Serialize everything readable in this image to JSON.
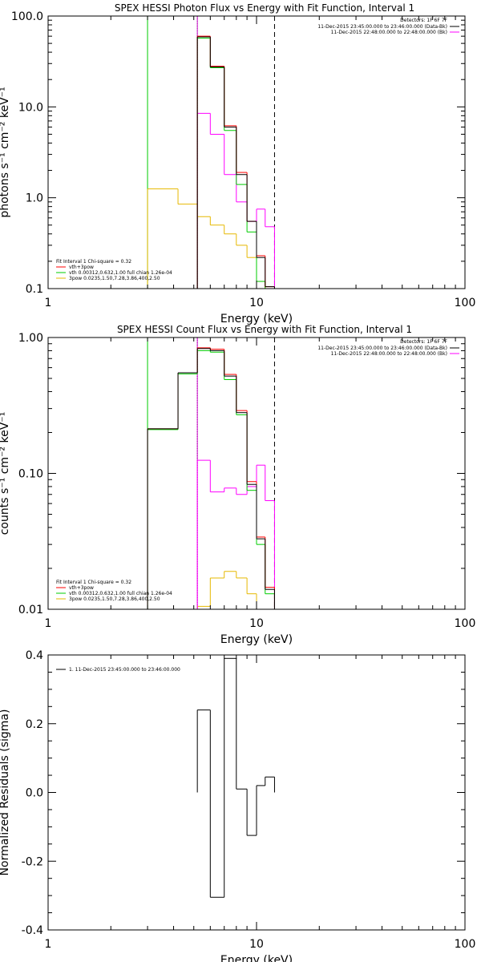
{
  "chart_data": [
    {
      "type": "line",
      "title": "SPEX HESSI Photon Flux vs Energy with Fit Function, Interval 1",
      "xlabel": "Energy (keV)",
      "ylabel": "photons s⁻¹ cm⁻² keV⁻¹",
      "xscale": "log",
      "yscale": "log",
      "xlim": [
        1,
        100
      ],
      "ylim": [
        0.1,
        100
      ],
      "x_ticks": [
        "1",
        "10",
        "100"
      ],
      "y_ticks": [
        "0.1",
        "1.0",
        "10.0",
        "100.0"
      ],
      "y_tick_values": [
        0.1,
        1,
        10,
        100
      ],
      "legend_top": {
        "header": "Detectors: 1F 6F 7F",
        "items": [
          {
            "text": "11-Dec-2015 23:45:00.000 to 23:46:00.000 (Data-Bk)",
            "color": "#000000"
          },
          {
            "text": "11-Dec-2015 22:48:00.000 to 22:48:00.000 (Bk)",
            "color": "#ff00ff"
          }
        ]
      },
      "legend_bottom": {
        "header": "Fit Interval 1   Chi-square = 0.32",
        "items": [
          {
            "text": "vth+3pow",
            "color": "#ff0000"
          },
          {
            "text": "vth 0.00312,0.632,1.00  full chian 1.26e-04",
            "color": "#00cc00"
          },
          {
            "text": "3pow 0.0235,1.50,7.28,3.86,400,2.50",
            "color": "#e6b800"
          }
        ]
      },
      "vlines": [
        {
          "x": 3.0,
          "color": "#00cc00",
          "style": "solid"
        },
        {
          "x": 5.2,
          "color": "#00aa00",
          "style": "dotted"
        },
        {
          "x": 5.2,
          "color": "#cc00cc",
          "style": "solid"
        },
        {
          "x": 12.2,
          "color": "#000000",
          "style": "dashed"
        }
      ],
      "bin_edges": [
        3.0,
        4.2,
        5.2,
        6.0,
        7.0,
        8.0,
        9.0,
        10.0,
        11.0,
        12.2
      ],
      "series": [
        {
          "color": "#e6b800",
          "values": [
            1.25,
            0.85,
            0.62,
            0.5,
            0.4,
            0.3,
            0.22,
            0.12,
            0.1
          ]
        },
        {
          "color": "#ff00ff",
          "values": [
            null,
            null,
            8.5,
            5.0,
            1.8,
            0.9,
            0.55,
            0.75,
            0.48
          ]
        },
        {
          "color": "#00cc00",
          "values": [
            null,
            null,
            57,
            27,
            5.5,
            1.4,
            0.42,
            0.12,
            0.1
          ]
        },
        {
          "color": "#ff0000",
          "values": [
            null,
            null,
            60,
            28,
            6.2,
            1.9,
            0.55,
            0.23,
            0.105
          ]
        },
        {
          "color": "#000000",
          "values": [
            null,
            null,
            59,
            27.5,
            6.0,
            1.8,
            0.55,
            0.22,
            0.105
          ]
        }
      ]
    },
    {
      "type": "line",
      "title": "SPEX HESSI Count Flux vs Energy with Fit Function, Interval 1",
      "xlabel": "Energy (keV)",
      "ylabel": "counts s⁻¹ cm⁻² keV⁻¹",
      "xscale": "log",
      "yscale": "log",
      "xlim": [
        1,
        100
      ],
      "ylim": [
        0.01,
        1.0
      ],
      "x_ticks": [
        "1",
        "10",
        "100"
      ],
      "y_ticks": [
        "0.01",
        "0.10",
        "1.00"
      ],
      "y_tick_values": [
        0.01,
        0.1,
        1
      ],
      "legend_top": {
        "header": "Detectors: 1F 6F 7F",
        "items": [
          {
            "text": "11-Dec-2015 23:45:00.000 to 23:46:00.000 (Data-Bk)",
            "color": "#000000"
          },
          {
            "text": "11-Dec-2015 22:48:00.000 to 22:48:00.000 (Bk)",
            "color": "#ff00ff"
          }
        ]
      },
      "legend_bottom": {
        "header": "Fit Interval 1   Chi-square = 0.32",
        "items": [
          {
            "text": "vth+3pow",
            "color": "#ff0000"
          },
          {
            "text": "vth 0.00312,0.632,1.00  full chian 1.26e-04",
            "color": "#00cc00"
          },
          {
            "text": "3pow 0.0235,1.50,7.28,3.86,400,2.50",
            "color": "#e6b800"
          }
        ]
      },
      "vlines": [
        {
          "x": 3.0,
          "color": "#00cc00",
          "style": "solid"
        },
        {
          "x": 5.2,
          "color": "#000000",
          "style": "dotted"
        },
        {
          "x": 5.2,
          "color": "#cc00cc",
          "style": "solid"
        },
        {
          "x": 12.2,
          "color": "#000000",
          "style": "dashed"
        }
      ],
      "bin_edges": [
        3.0,
        4.2,
        5.2,
        6.0,
        7.0,
        8.0,
        9.0,
        10.0,
        11.0,
        12.2
      ],
      "series": [
        {
          "color": "#e6b800",
          "values": [
            null,
            null,
            0.0105,
            0.017,
            0.019,
            0.017,
            0.013,
            0.01,
            null
          ]
        },
        {
          "color": "#ff00ff",
          "values": [
            null,
            null,
            0.125,
            0.073,
            0.078,
            0.07,
            0.08,
            0.115,
            0.063
          ]
        },
        {
          "color": "#00cc00",
          "values": [
            0.21,
            0.54,
            0.8,
            0.78,
            0.49,
            0.27,
            0.075,
            0.03,
            0.013
          ]
        },
        {
          "color": "#ff0000",
          "values": [
            0.213,
            0.55,
            0.84,
            0.82,
            0.535,
            0.29,
            0.087,
            0.034,
            0.0145
          ]
        },
        {
          "color": "#000000",
          "values": [
            0.213,
            0.55,
            0.83,
            0.8,
            0.52,
            0.28,
            0.083,
            0.033,
            0.014
          ]
        }
      ]
    },
    {
      "type": "line",
      "title": "",
      "xlabel": "Energy (keV)",
      "ylabel": "Normalized Residuals (sigma)",
      "xscale": "log",
      "yscale": "linear",
      "xlim": [
        1,
        100
      ],
      "ylim": [
        -0.4,
        0.4
      ],
      "x_ticks": [
        "1",
        "10",
        "100"
      ],
      "y_ticks": [
        "-0.4",
        "-0.2",
        "0.0",
        "0.2",
        "0.4"
      ],
      "y_tick_values": [
        -0.4,
        -0.2,
        0.0,
        0.2,
        0.4
      ],
      "legend": {
        "items": [
          {
            "text": "1. 11-Dec-2015 23:45:00.000 to 23:46:00.000",
            "color": "#000000"
          }
        ]
      },
      "bin_edges": [
        5.2,
        6.0,
        7.0,
        8.0,
        9.0,
        10.0,
        11.0,
        12.2
      ],
      "series": [
        {
          "color": "#000000",
          "values": [
            0.24,
            -0.305,
            0.39,
            0.01,
            -0.125,
            0.02,
            0.045
          ]
        }
      ]
    }
  ]
}
